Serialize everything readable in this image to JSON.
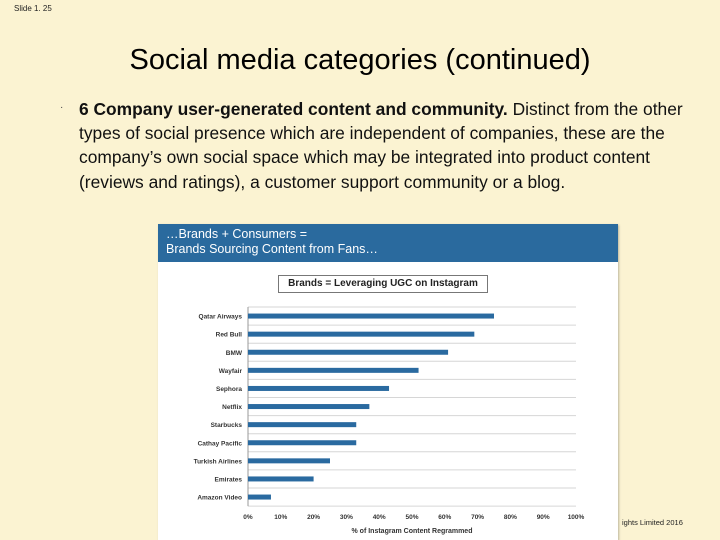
{
  "slide_number": "Slide 1. 25",
  "title": "Social media categories (continued)",
  "bullet": {
    "lead": "6 Company user-generated content and community.",
    "text": " Distinct from the other types of social presence which are independent of companies, these are the company’s own social space which may be integrated into product content (reviews and ratings), a customer support community or a blog."
  },
  "figure": {
    "banner_line1": "…Brands + Consumers =",
    "banner_line2": "Brands Sourcing Content from Fans…"
  },
  "chart_data": {
    "type": "bar",
    "orientation": "horizontal",
    "title": "Brands = Leveraging UGC on Instagram",
    "xlabel": "% of Instagram Content Regrammed",
    "categories": [
      "Qatar Airways",
      "Red Bull",
      "BMW",
      "Wayfair",
      "Sephora",
      "Netflix",
      "Starbucks",
      "Cathay Pacific",
      "Turkish Airlines",
      "Emirates",
      "Amazon Video"
    ],
    "values": [
      75,
      69,
      61,
      52,
      43,
      37,
      33,
      33,
      25,
      20,
      7
    ],
    "x_ticks": [
      "0%",
      "10%",
      "20%",
      "30%",
      "40%",
      "50%",
      "60%",
      "70%",
      "80%",
      "90%",
      "100%"
    ],
    "xlim": [
      0,
      100
    ],
    "grid": true,
    "bar_color": "#2a6aa0"
  },
  "footer": "ights Limited 2016"
}
